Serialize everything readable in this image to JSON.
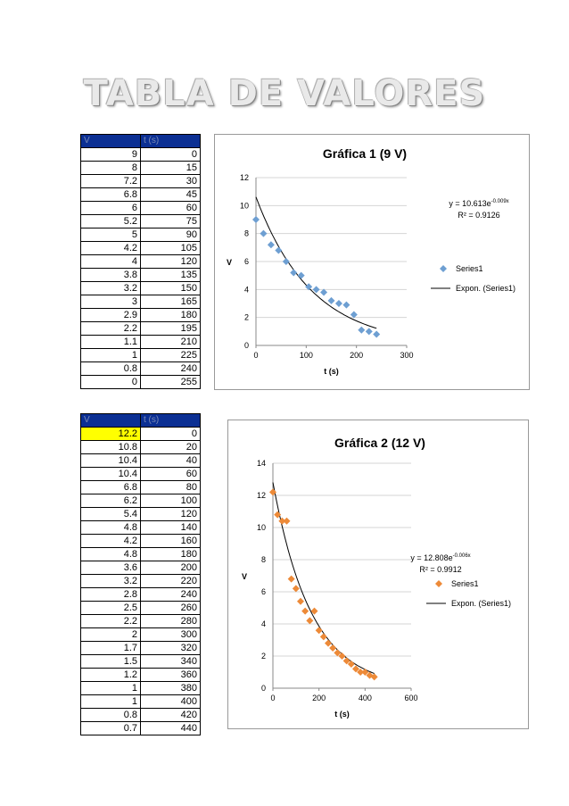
{
  "title": "TABLA DE VALORES",
  "tables": [
    {
      "headers": [
        "V",
        "t (s)"
      ],
      "rows": [
        [
          "9",
          "0"
        ],
        [
          "8",
          "15"
        ],
        [
          "7.2",
          "30"
        ],
        [
          "6.8",
          "45"
        ],
        [
          "6",
          "60"
        ],
        [
          "5.2",
          "75"
        ],
        [
          "5",
          "90"
        ],
        [
          "4.2",
          "105"
        ],
        [
          "4",
          "120"
        ],
        [
          "3.8",
          "135"
        ],
        [
          "3.2",
          "150"
        ],
        [
          "3",
          "165"
        ],
        [
          "2.9",
          "180"
        ],
        [
          "2.2",
          "195"
        ],
        [
          "1.1",
          "210"
        ],
        [
          "1",
          "225"
        ],
        [
          "0.8",
          "240"
        ],
        [
          "0",
          "255"
        ]
      ]
    },
    {
      "headers": [
        "V",
        "t (s)"
      ],
      "highlight_color": "#ffff00",
      "rows": [
        [
          "12.2",
          "0"
        ],
        [
          "10.8",
          "20"
        ],
        [
          "10.4",
          "40"
        ],
        [
          "10.4",
          "60"
        ],
        [
          "6.8",
          "80"
        ],
        [
          "6.2",
          "100"
        ],
        [
          "5.4",
          "120"
        ],
        [
          "4.8",
          "140"
        ],
        [
          "4.2",
          "160"
        ],
        [
          "4.8",
          "180"
        ],
        [
          "3.6",
          "200"
        ],
        [
          "3.2",
          "220"
        ],
        [
          "2.8",
          "240"
        ],
        [
          "2.5",
          "260"
        ],
        [
          "2.2",
          "280"
        ],
        [
          "2",
          "300"
        ],
        [
          "1.7",
          "320"
        ],
        [
          "1.5",
          "340"
        ],
        [
          "1.2",
          "360"
        ],
        [
          "1",
          "380"
        ],
        [
          "1",
          "400"
        ],
        [
          "0.8",
          "420"
        ],
        [
          "0.7",
          "440"
        ]
      ]
    }
  ],
  "chart_data": [
    {
      "type": "scatter",
      "title": "Gráfica 1 (9 V)",
      "xlabel": "t (s)",
      "ylabel": "V",
      "xlim": [
        0,
        300
      ],
      "ylim": [
        0,
        12
      ],
      "xticks": [
        "0",
        "100",
        "200",
        "300"
      ],
      "yticks": [
        "0",
        "2",
        "4",
        "6",
        "8",
        "10",
        "12"
      ],
      "grid": true,
      "legend_position": "right",
      "marker_color": "#6e9fd2",
      "series": [
        {
          "name": "Series1",
          "x": [
            0,
            15,
            30,
            45,
            60,
            75,
            90,
            105,
            120,
            135,
            150,
            165,
            180,
            195,
            210,
            225,
            240
          ],
          "y": [
            9,
            8,
            7.2,
            6.8,
            6,
            5.2,
            5,
            4.2,
            4,
            3.8,
            3.2,
            3,
            2.9,
            2.2,
            1.1,
            1,
            0.8
          ]
        }
      ],
      "trendline": {
        "name": "Expon. (Series1)",
        "a": 10.613,
        "b": -0.009,
        "x_range": [
          0,
          240
        ],
        "equation": "y = 10.613e",
        "exponent": "-0.009x",
        "r2": "R² = 0.9126"
      }
    },
    {
      "type": "scatter",
      "title": "Gráfica 2 (12 V)",
      "xlabel": "t (s)",
      "ylabel": "V",
      "xlim": [
        0,
        600
      ],
      "ylim": [
        0,
        14
      ],
      "xticks": [
        "0",
        "200",
        "400",
        "600"
      ],
      "yticks": [
        "0",
        "2",
        "4",
        "6",
        "8",
        "10",
        "12",
        "14"
      ],
      "grid": true,
      "legend_position": "right",
      "marker_color": "#ed8a38",
      "series": [
        {
          "name": "Series1",
          "x": [
            0,
            20,
            40,
            60,
            80,
            100,
            120,
            140,
            160,
            180,
            200,
            220,
            240,
            260,
            280,
            300,
            320,
            340,
            360,
            380,
            400,
            420,
            440
          ],
          "y": [
            12.2,
            10.8,
            10.4,
            10.4,
            6.8,
            6.2,
            5.4,
            4.8,
            4.2,
            4.8,
            3.6,
            3.2,
            2.8,
            2.5,
            2.2,
            2,
            1.7,
            1.5,
            1.2,
            1,
            1,
            0.8,
            0.7
          ]
        }
      ],
      "trendline": {
        "name": "Expon. (Series1)",
        "a": 12.808,
        "b": -0.006,
        "x_range": [
          0,
          440
        ],
        "equation": "y = 12.808e",
        "exponent": "-0.006x",
        "r2": "R² = 0.9912"
      }
    }
  ]
}
